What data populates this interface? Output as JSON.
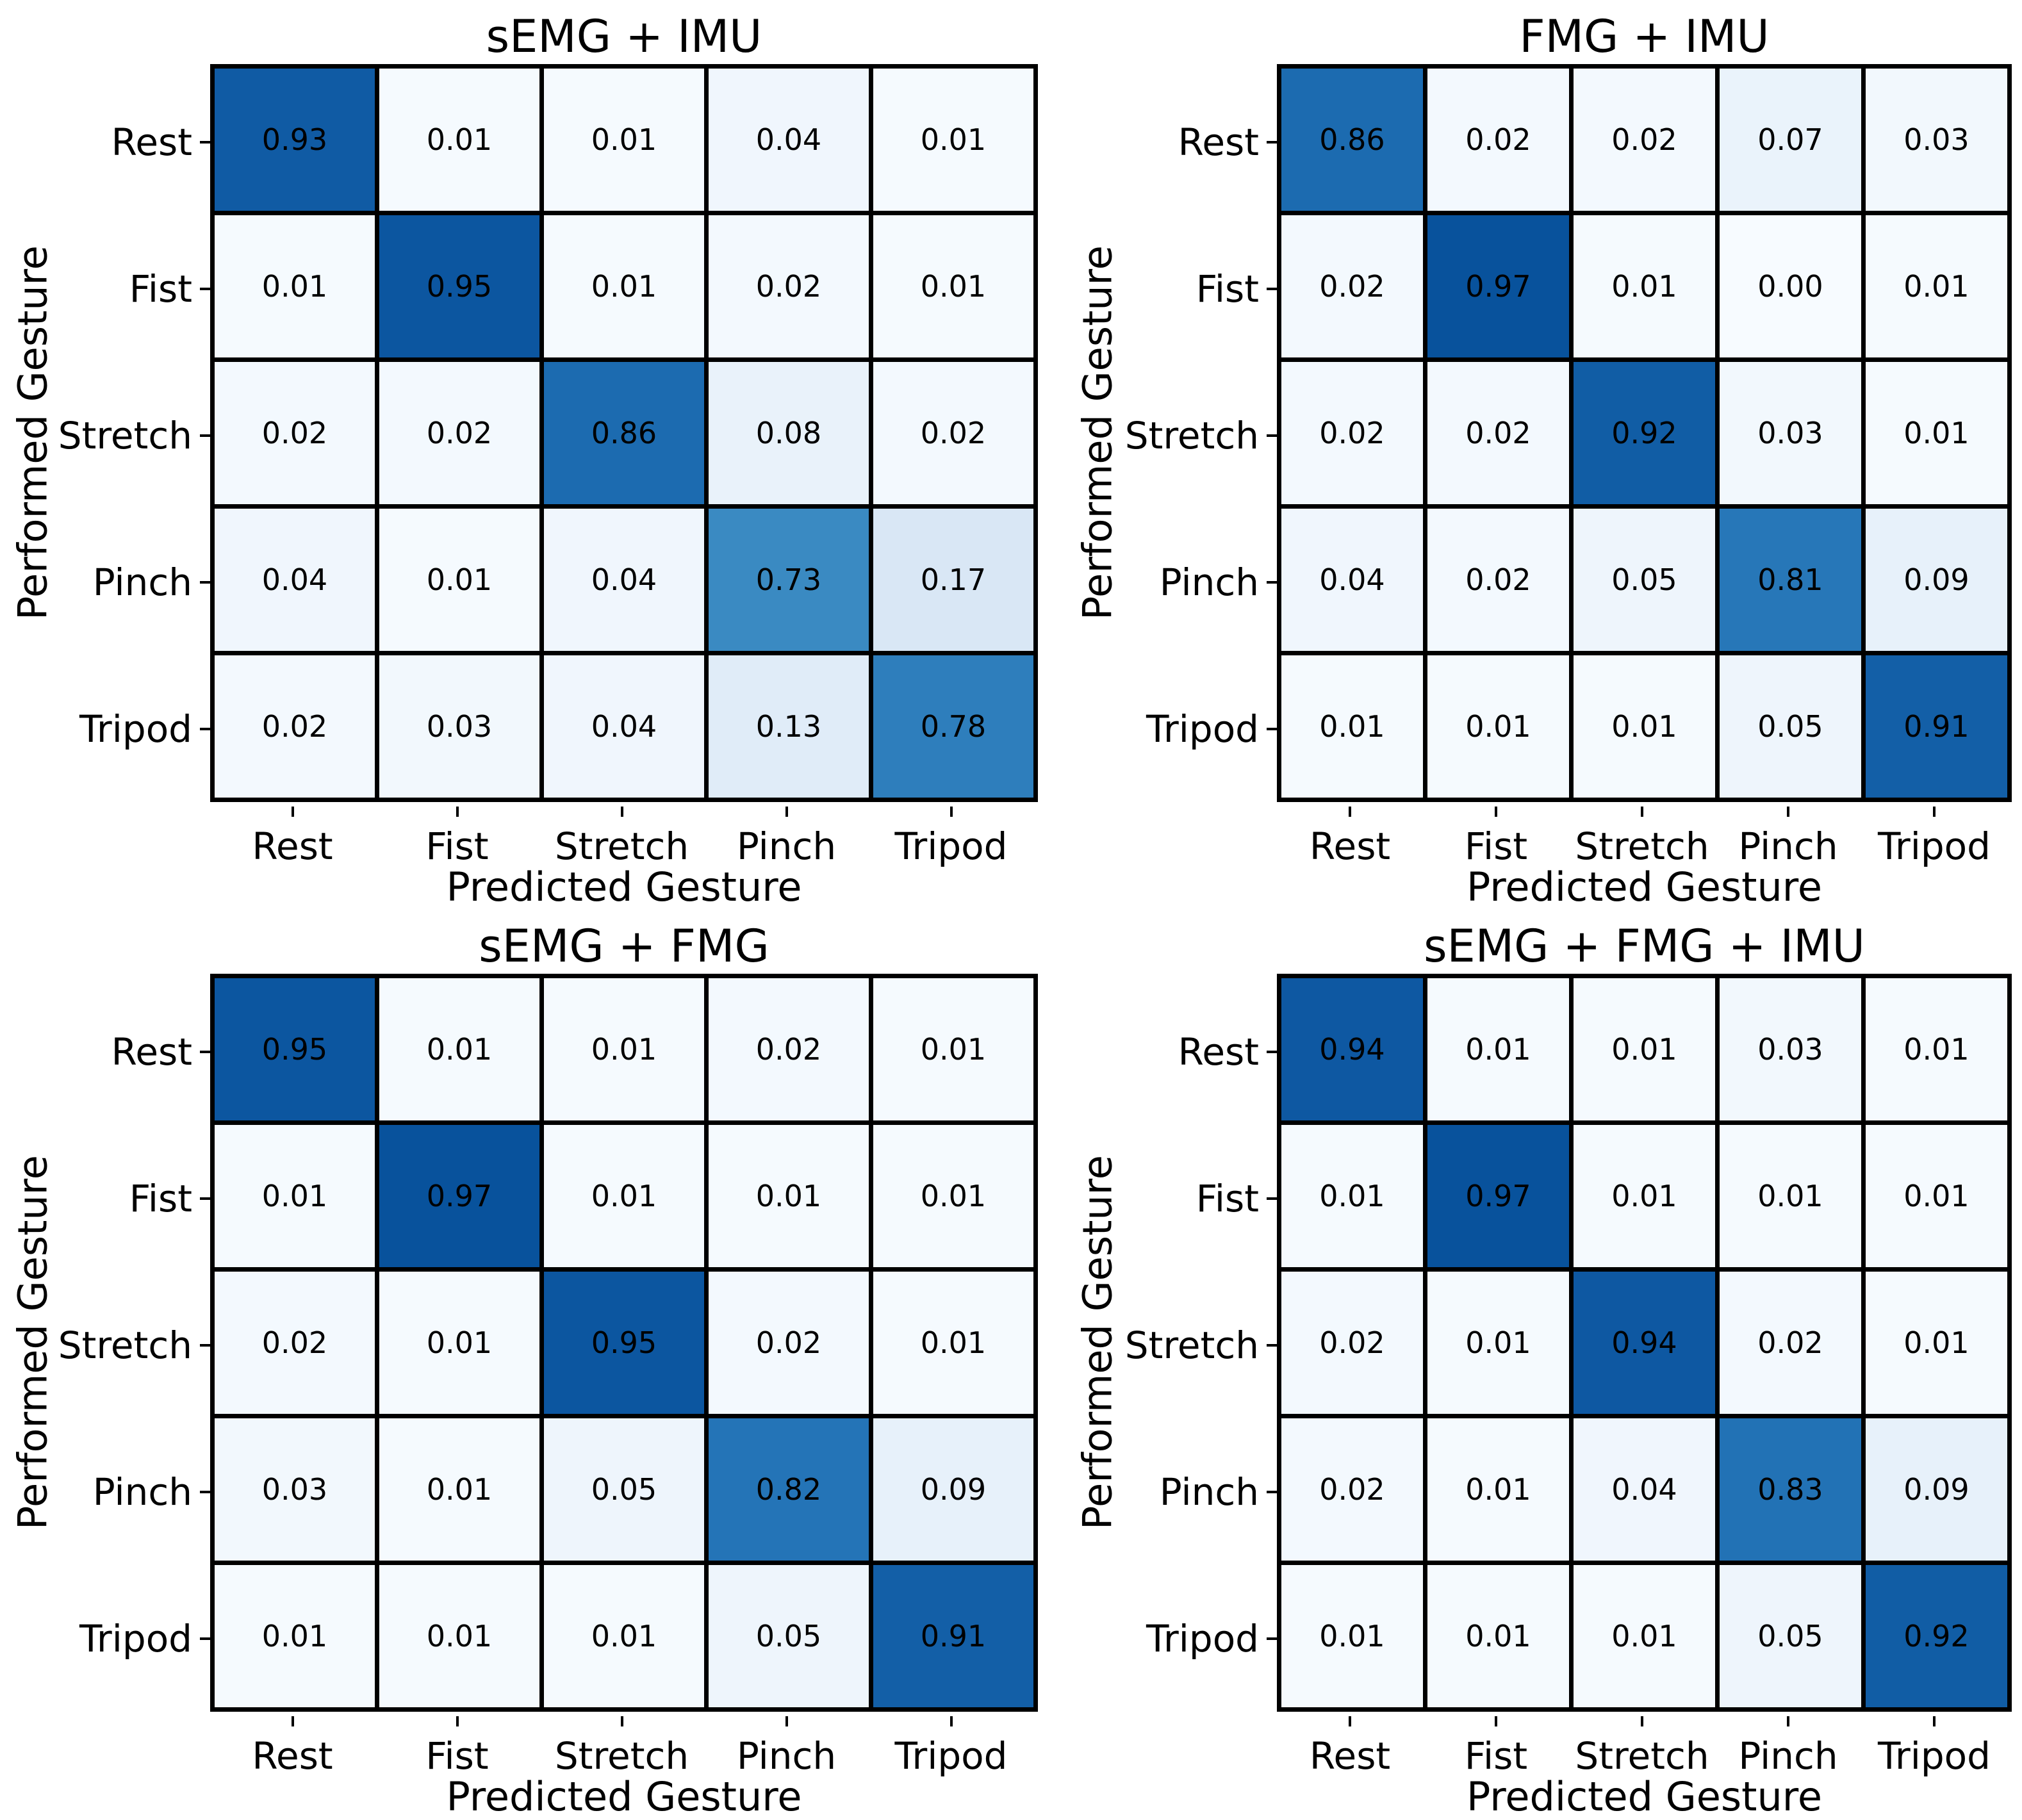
{
  "figure": {
    "background": "#ffffff",
    "text_color": "#000000",
    "grid_line_color": "#000000",
    "xlabel": "Predicted Gesture",
    "ylabel": "Performed Gesture",
    "classes": [
      "Rest",
      "Fist",
      "Stretch",
      "Pinch",
      "Tripod"
    ]
  },
  "chart_data": [
    {
      "type": "heatmap",
      "title": "sEMG + IMU",
      "xlabel": "Predicted Gesture",
      "ylabel": "Performed Gesture",
      "x_tick_labels": [
        "Rest",
        "Fist",
        "Stretch",
        "Pinch",
        "Tripod"
      ],
      "y_tick_labels": [
        "Rest",
        "Fist",
        "Stretch",
        "Pinch",
        "Tripod"
      ],
      "colormap": "Blues",
      "value_range": [
        0,
        1
      ],
      "matrix": [
        [
          0.93,
          0.01,
          0.01,
          0.04,
          0.01
        ],
        [
          0.01,
          0.95,
          0.01,
          0.02,
          0.01
        ],
        [
          0.02,
          0.02,
          0.86,
          0.08,
          0.02
        ],
        [
          0.04,
          0.01,
          0.04,
          0.73,
          0.17
        ],
        [
          0.02,
          0.03,
          0.04,
          0.13,
          0.78
        ]
      ]
    },
    {
      "type": "heatmap",
      "title": "FMG + IMU",
      "xlabel": "Predicted Gesture",
      "ylabel": "Performed Gesture",
      "x_tick_labels": [
        "Rest",
        "Fist",
        "Stretch",
        "Pinch",
        "Tripod"
      ],
      "y_tick_labels": [
        "Rest",
        "Fist",
        "Stretch",
        "Pinch",
        "Tripod"
      ],
      "colormap": "Blues",
      "value_range": [
        0,
        1
      ],
      "matrix": [
        [
          0.86,
          0.02,
          0.02,
          0.07,
          0.03
        ],
        [
          0.02,
          0.97,
          0.01,
          0.0,
          0.01
        ],
        [
          0.02,
          0.02,
          0.92,
          0.03,
          0.01
        ],
        [
          0.04,
          0.02,
          0.05,
          0.81,
          0.09
        ],
        [
          0.01,
          0.01,
          0.01,
          0.05,
          0.91
        ]
      ]
    },
    {
      "type": "heatmap",
      "title": "sEMG + FMG",
      "xlabel": "Predicted Gesture",
      "ylabel": "Performed Gesture",
      "x_tick_labels": [
        "Rest",
        "Fist",
        "Stretch",
        "Pinch",
        "Tripod"
      ],
      "y_tick_labels": [
        "Rest",
        "Fist",
        "Stretch",
        "Pinch",
        "Tripod"
      ],
      "colormap": "Blues",
      "value_range": [
        0,
        1
      ],
      "matrix": [
        [
          0.95,
          0.01,
          0.01,
          0.02,
          0.01
        ],
        [
          0.01,
          0.97,
          0.01,
          0.01,
          0.01
        ],
        [
          0.02,
          0.01,
          0.95,
          0.02,
          0.01
        ],
        [
          0.03,
          0.01,
          0.05,
          0.82,
          0.09
        ],
        [
          0.01,
          0.01,
          0.01,
          0.05,
          0.91
        ]
      ]
    },
    {
      "type": "heatmap",
      "title": "sEMG + FMG + IMU",
      "xlabel": "Predicted Gesture",
      "ylabel": "Performed Gesture",
      "x_tick_labels": [
        "Rest",
        "Fist",
        "Stretch",
        "Pinch",
        "Tripod"
      ],
      "y_tick_labels": [
        "Rest",
        "Fist",
        "Stretch",
        "Pinch",
        "Tripod"
      ],
      "colormap": "Blues",
      "value_range": [
        0,
        1
      ],
      "matrix": [
        [
          0.94,
          0.01,
          0.01,
          0.03,
          0.01
        ],
        [
          0.01,
          0.97,
          0.01,
          0.01,
          0.01
        ],
        [
          0.02,
          0.01,
          0.94,
          0.02,
          0.01
        ],
        [
          0.02,
          0.01,
          0.04,
          0.83,
          0.09
        ],
        [
          0.01,
          0.01,
          0.01,
          0.05,
          0.92
        ]
      ]
    }
  ]
}
